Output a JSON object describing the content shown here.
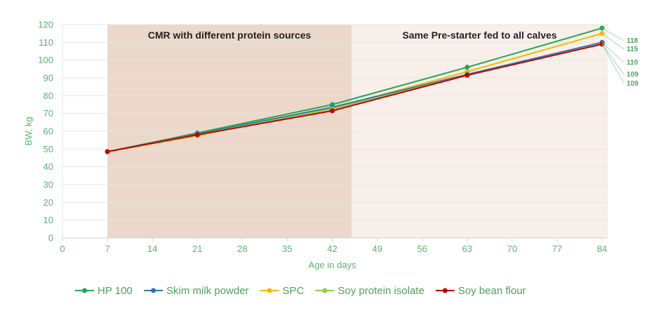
{
  "chart_data": {
    "type": "line",
    "title": "",
    "xlabel": "Age in days",
    "ylabel": "BW, kg",
    "xlim": [
      0,
      84
    ],
    "ylim": [
      0,
      120
    ],
    "xticks": [
      0,
      7,
      14,
      21,
      28,
      35,
      42,
      49,
      56,
      63,
      70,
      77,
      84
    ],
    "yticks": [
      0,
      10,
      20,
      30,
      40,
      50,
      60,
      70,
      80,
      90,
      100,
      110,
      120
    ],
    "grid": "horizontal",
    "legend_position": "bottom",
    "phases": [
      {
        "label": "CMR with different protein sources",
        "x_start": 7,
        "x_end": 45,
        "color": "#ecd8ca"
      },
      {
        "label": "Same Pre-starter fed to all calves",
        "x_start": 45,
        "x_end": 84,
        "color": "#f8efea"
      }
    ],
    "x": [
      7,
      21,
      42,
      63,
      84
    ],
    "series": [
      {
        "name": "HP 100",
        "color": "#1faa4f",
        "values": [
          48.5,
          59,
          75,
          96,
          118
        ],
        "end_label": "118"
      },
      {
        "name": "Skim milk powder",
        "color": "#2e75b6",
        "values": [
          48.5,
          58.5,
          73.5,
          92,
          110
        ],
        "end_label": "110"
      },
      {
        "name": "SPC",
        "color": "#f5b800",
        "values": [
          48.5,
          57.5,
          73,
          93.5,
          115
        ],
        "end_label": "115"
      },
      {
        "name": "Soy protein isolate",
        "color": "#8ccf47",
        "values": [
          48.5,
          58,
          72.5,
          91.5,
          109
        ],
        "end_label": "109"
      },
      {
        "name": "Soy bean flour",
        "color": "#c00000",
        "values": [
          48.5,
          58,
          71.5,
          91.5,
          109
        ],
        "end_label": "109"
      }
    ]
  }
}
